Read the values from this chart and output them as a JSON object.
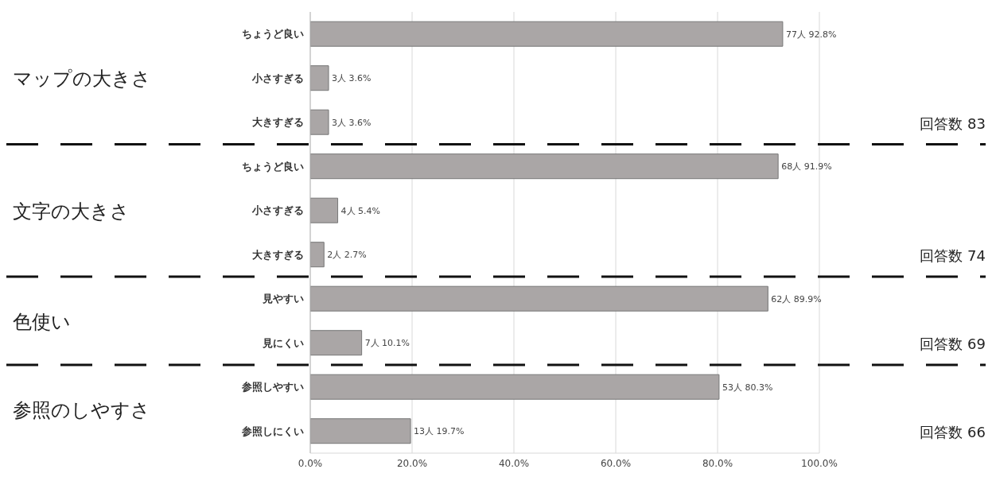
{
  "chart_data": {
    "type": "bar",
    "orientation": "horizontal",
    "categories": [
      "ちょうど良い",
      "小さすぎる",
      "大きすぎる",
      "ちょうど良い",
      "小さすぎる",
      "大きすぎる",
      "見やすい",
      "見にくい",
      "参照しやすい",
      "参照しにくい"
    ],
    "values": [
      92.8,
      3.6,
      3.6,
      91.9,
      5.4,
      2.7,
      89.9,
      10.1,
      80.3,
      19.7
    ],
    "value_labels": [
      "77人 92.8%",
      "3人 3.6%",
      "3人 3.6%",
      "68人 91.9%",
      "4人 5.4%",
      "2人 2.7%",
      "62人 89.9%",
      "7人 10.1%",
      "53人 80.3%",
      "13人 19.7%"
    ],
    "color": "#aaa6a6",
    "xlim": [
      0,
      100
    ],
    "xticks": [
      {
        "value": 0,
        "label": "0.0%"
      },
      {
        "value": 20,
        "label": "20.0%"
      },
      {
        "value": 40,
        "label": "40.0%"
      },
      {
        "value": 60,
        "label": "60.0%"
      },
      {
        "value": 80,
        "label": "80.0%"
      },
      {
        "value": 100,
        "label": "100.0%"
      }
    ],
    "grid": "x",
    "legend": false,
    "annotations": [
      "マップの大きさ",
      "回答数 83",
      "文字の大きさ",
      "回答数 74",
      "色使い",
      "回答数 69",
      "参照のしやすさ",
      "回答数 66"
    ]
  }
}
